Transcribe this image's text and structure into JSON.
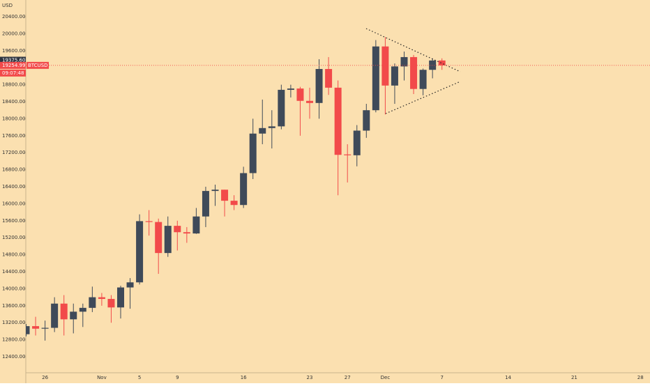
{
  "chart_data": {
    "type": "candlestick",
    "currency": "USD",
    "symbol": "BTCUSD",
    "countdown": "09:07:48",
    "up_color": "#3f4a59",
    "down_color": "#f24a4a",
    "background": "#fbe0b0",
    "categories": [
      null,
      null,
      "26",
      null,
      null,
      null,
      null,
      null,
      "Nov",
      null,
      null,
      null,
      "5",
      null,
      null,
      null,
      "9",
      null,
      null,
      null,
      null,
      null,
      null,
      "16",
      null,
      null,
      null,
      null,
      null,
      null,
      "23",
      null,
      null,
      null,
      "27",
      null,
      null,
      null,
      "Dec",
      null,
      null,
      null,
      null,
      null,
      "7",
      null,
      null,
      null,
      null,
      null,
      null,
      "14",
      null,
      null,
      null,
      null,
      null,
      null,
      "21",
      null,
      null,
      null,
      null,
      null,
      null,
      "28"
    ],
    "open": [
      12930,
      13120,
      13060,
      13080,
      13650,
      13280,
      13460,
      13550,
      13800,
      13760,
      13560,
      14030,
      14150,
      15590,
      15570,
      14840,
      15480,
      15330,
      15300,
      15700,
      16300,
      16330,
      16070,
      15970,
      16720,
      17650,
      17780,
      17820,
      18680,
      18710,
      18420,
      18370,
      19170,
      18730,
      17160,
      17140,
      17720,
      18200,
      19700,
      18780,
      19230,
      19450,
      18700,
      19150,
      19370,
      null,
      null,
      null,
      null,
      null,
      null,
      null,
      null,
      null,
      null,
      null,
      null,
      null,
      null,
      null,
      null,
      null,
      null,
      null,
      null,
      null
    ],
    "high": [
      13170,
      13340,
      13250,
      13800,
      13850,
      13650,
      13650,
      14050,
      13900,
      13850,
      14070,
      14250,
      15750,
      15850,
      15650,
      15700,
      15600,
      15450,
      15900,
      16400,
      16450,
      16330,
      16200,
      16870,
      18000,
      18450,
      18200,
      18800,
      18800,
      18750,
      18730,
      19400,
      19450,
      18900,
      17400,
      17850,
      18350,
      19850,
      19920,
      19300,
      19580,
      19500,
      19180,
      19420,
      19420,
      null,
      null,
      null,
      null,
      null,
      null,
      null,
      null,
      null,
      null,
      null,
      null,
      null,
      null,
      null,
      null,
      null,
      null,
      null,
      null,
      null
    ],
    "low": [
      12880,
      12900,
      12780,
      12980,
      12900,
      12950,
      13100,
      13450,
      13600,
      13200,
      13300,
      13530,
      14100,
      15250,
      14350,
      14750,
      14900,
      15080,
      15290,
      15450,
      15950,
      15700,
      15850,
      15900,
      16580,
      17400,
      17300,
      17750,
      18500,
      17600,
      18000,
      18000,
      18560,
      16200,
      16500,
      16880,
      17550,
      18150,
      18100,
      18350,
      18900,
      18580,
      18550,
      18950,
      19150,
      null,
      null,
      null,
      null,
      null,
      null,
      null,
      null,
      null,
      null,
      null,
      null,
      null,
      null,
      null,
      null,
      null,
      null,
      null,
      null,
      null
    ],
    "close": [
      13120,
      13060,
      13080,
      13650,
      13280,
      13460,
      13550,
      13800,
      13760,
      13560,
      14030,
      14150,
      15590,
      15570,
      14840,
      15480,
      15330,
      15300,
      15700,
      16300,
      16330,
      16070,
      15970,
      16720,
      17650,
      17780,
      17820,
      18680,
      18710,
      18420,
      18370,
      19170,
      18730,
      17150,
      17140,
      17720,
      18200,
      19700,
      18780,
      19230,
      19450,
      18700,
      19150,
      19370,
      19254.99,
      null,
      null,
      null,
      null,
      null,
      null,
      null,
      null,
      null,
      null,
      null,
      null,
      null,
      null,
      null,
      null,
      null,
      null,
      null,
      null,
      null
    ],
    "ylim": [
      12023,
      20793
    ],
    "yticks": [
      {
        "value": 12400,
        "label": "12400.00"
      },
      {
        "value": 12800,
        "label": "12800.00"
      },
      {
        "value": 13200,
        "label": "13200.00"
      },
      {
        "value": 13600,
        "label": "13600.00"
      },
      {
        "value": 14000,
        "label": "14000.00"
      },
      {
        "value": 14400,
        "label": "14400.00"
      },
      {
        "value": 14800,
        "label": "14800.00"
      },
      {
        "value": 15200,
        "label": "15200.00"
      },
      {
        "value": 15600,
        "label": "15600.00"
      },
      {
        "value": 16000,
        "label": "16000.00"
      },
      {
        "value": 16400,
        "label": "16400.00"
      },
      {
        "value": 16800,
        "label": "16800.00"
      },
      {
        "value": 17200,
        "label": "17200.00"
      },
      {
        "value": 17600,
        "label": "17600.00"
      },
      {
        "value": 18000,
        "label": "18000.00"
      },
      {
        "value": 18400,
        "label": "18400.00"
      },
      {
        "value": 18800,
        "label": "18800.00"
      },
      {
        "value": 19600,
        "label": "19600.00"
      },
      {
        "value": 20000,
        "label": "20000.00"
      },
      {
        "value": 20400,
        "label": "20400.00"
      }
    ],
    "price_marker": {
      "value": 19375.6,
      "label": "19375.60"
    },
    "last_price": {
      "value": 19254.99,
      "label": "19254.99"
    }
  }
}
